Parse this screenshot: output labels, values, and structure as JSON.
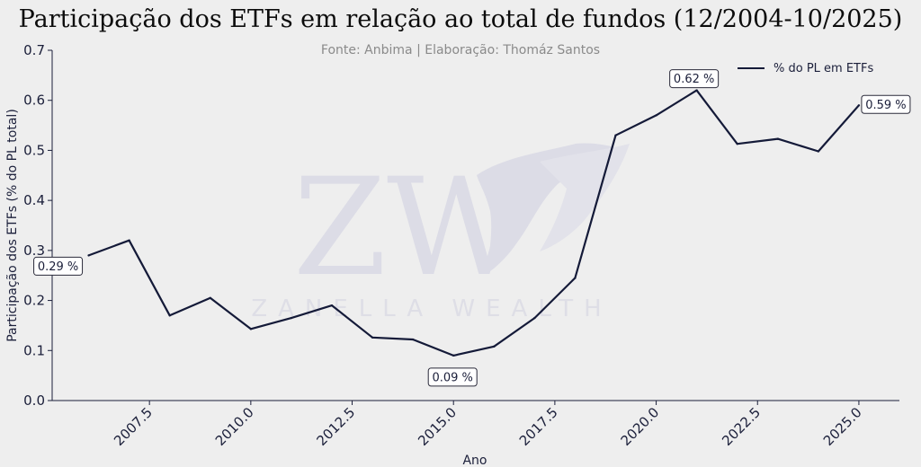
{
  "chart_data": {
    "type": "line",
    "title": "Participação dos ETFs em relação ao total de fundos (12/2004-10/2025)",
    "subtitle": "Fonte: Anbima | Elaboração: Thomáz Santos",
    "xlabel": "Ano",
    "ylabel": "Participação dos ETFs (% do PL total)",
    "xlim": [
      2005.1,
      2026.0
    ],
    "ylim": [
      0,
      0.7
    ],
    "xticks": [
      2007.5,
      2010.0,
      2012.5,
      2015.0,
      2017.5,
      2020.0,
      2022.5,
      2025.0
    ],
    "xtick_labels": [
      "2007.5",
      "2010.0",
      "2012.5",
      "2015.0",
      "2017.5",
      "2020.0",
      "2022.5",
      "2025.0"
    ],
    "yticks": [
      0.0,
      0.1,
      0.2,
      0.3,
      0.4,
      0.5,
      0.6,
      0.7
    ],
    "ytick_labels": [
      "0.0",
      "0.1",
      "0.2",
      "0.3",
      "0.4",
      "0.5",
      "0.6",
      "0.7"
    ],
    "grid": false,
    "legend_position": "top-right",
    "series": [
      {
        "name": "% do PL em ETFs",
        "color": "#141a38",
        "x": [
          2006,
          2007,
          2008,
          2009,
          2010,
          2011,
          2012,
          2013,
          2014,
          2015,
          2016,
          2017,
          2018,
          2019,
          2020,
          2021,
          2022,
          2023,
          2024,
          2025
        ],
        "values": [
          0.29,
          0.32,
          0.17,
          0.205,
          0.143,
          0.165,
          0.19,
          0.126,
          0.122,
          0.09,
          0.108,
          0.165,
          0.245,
          0.53,
          0.57,
          0.62,
          0.513,
          0.523,
          0.498,
          0.59
        ]
      }
    ],
    "annotations": [
      {
        "text": "0.29 %",
        "x": 2006,
        "y": 0.29,
        "anchor": "below-left"
      },
      {
        "text": "0.09 %",
        "x": 2015,
        "y": 0.09,
        "anchor": "below"
      },
      {
        "text": "0.62 %",
        "x": 2021,
        "y": 0.62,
        "anchor": "above"
      },
      {
        "text": "0.59 %",
        "x": 2025,
        "y": 0.59,
        "anchor": "right"
      }
    ],
    "watermark": {
      "text": "ZANELLA WEALTH",
      "monogram": "ZW"
    }
  }
}
